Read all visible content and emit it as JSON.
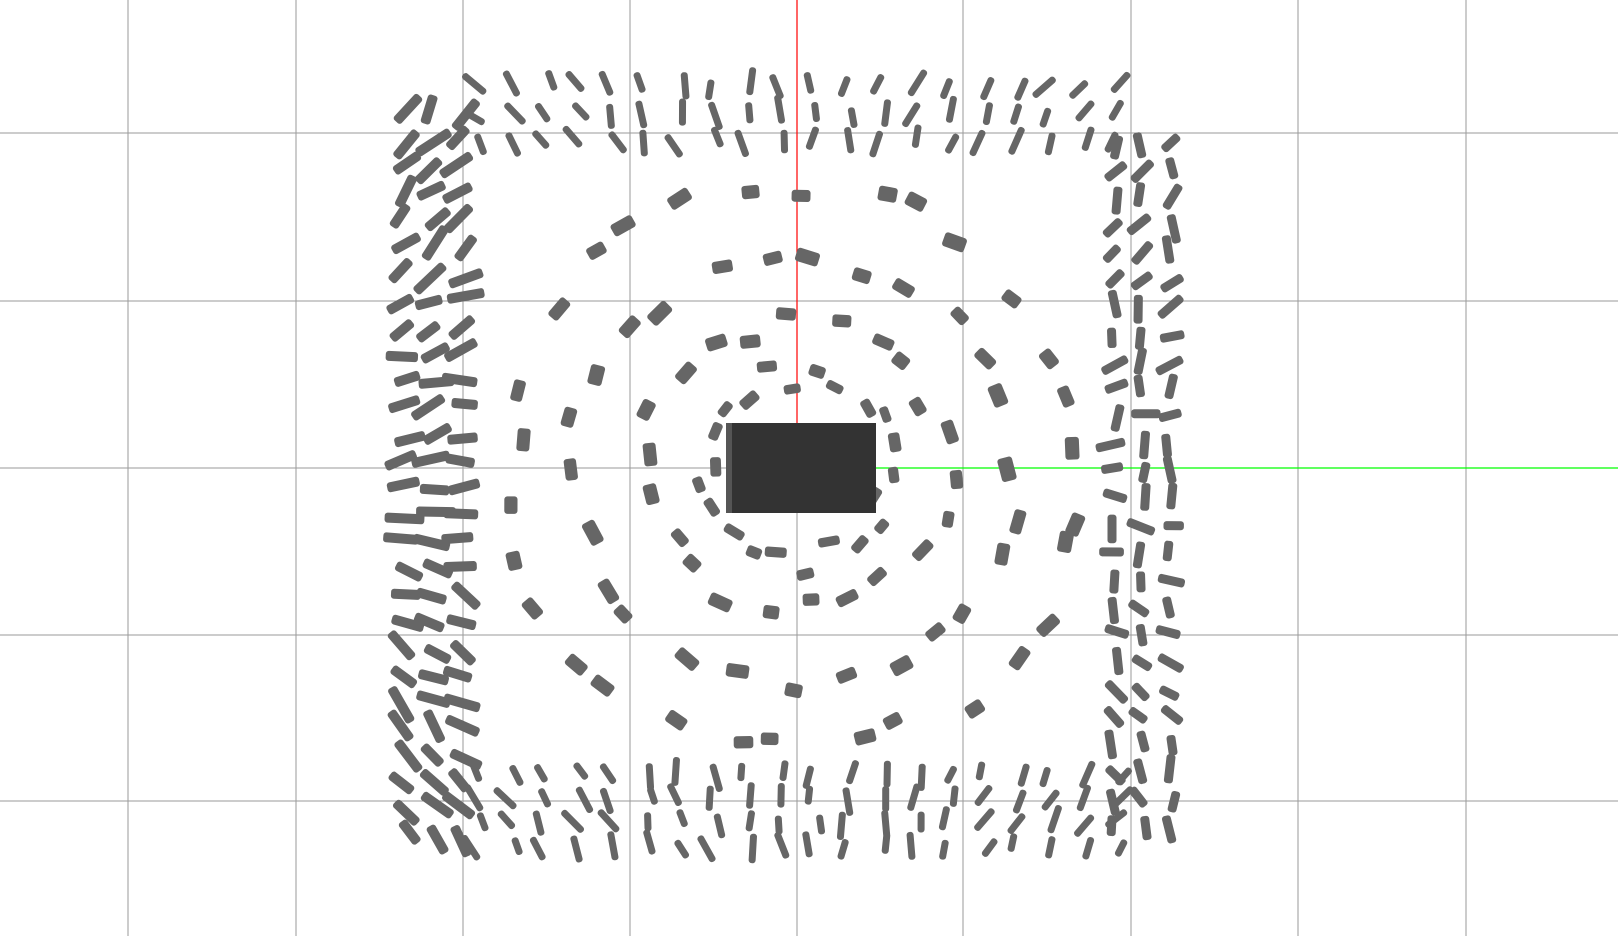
{
  "scene": {
    "background_color": "#ffffff",
    "grid_color": "#9a9a9a",
    "x_axis_color": "#ff0000",
    "y_axis_color": "#00ff00",
    "object_color": "#666666",
    "center_object_color": "#333333"
  }
}
